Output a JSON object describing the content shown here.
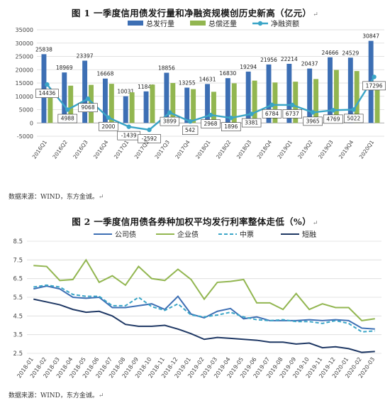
{
  "chart1": {
    "title": "图 1  一季度信用债发行量和净融资规模创历史新高（亿元）",
    "source": "数据来源：WIND，东方金诚。",
    "chart_data": {
      "type": "bar",
      "title": "图 1  一季度信用债发行量和净融资规模创历史新高（亿元）",
      "categories": [
        "2016Q1",
        "2016Q2",
        "2016Q3",
        "2016Q4",
        "2017Q1",
        "2017Q2",
        "2017Q3",
        "2017Q4",
        "2018Q1",
        "2018Q2",
        "2018Q3",
        "2018Q4",
        "2019Q1",
        "2019Q2",
        "2019Q3",
        "2019Q4",
        "2020Q1"
      ],
      "ylim": [
        -5000,
        35000
      ],
      "yticks": [
        -5000,
        0,
        5000,
        10000,
        15000,
        20000,
        25000,
        30000,
        35000
      ],
      "legend_position": "top",
      "series": [
        {
          "name": "总发行量",
          "type": "bar",
          "color": "#3d6fb4",
          "values": [
            25838,
            18969,
            23397,
            16668,
            10031,
            11849,
            18856,
            13255,
            14631,
            16830,
            19294,
            21956,
            22214,
            20437,
            24666,
            24529,
            30847
          ],
          "labels_shown": true
        },
        {
          "name": "总偿还量",
          "type": "bar",
          "color": "#92b650",
          "values": [
            11400,
            14000,
            14300,
            14700,
            11500,
            14400,
            15000,
            12700,
            11700,
            14900,
            15900,
            15200,
            15500,
            16500,
            19900,
            19500,
            13600
          ],
          "labels_shown": false
        },
        {
          "name": "净融资额",
          "type": "line",
          "color": "#3aa5c7",
          "values": [
            14436,
            4988,
            9068,
            2000,
            -1439,
            -2592,
            3899,
            542,
            2968,
            1896,
            3381,
            6784,
            6737,
            3965,
            4769,
            5022,
            17296
          ],
          "labels_shown": true
        }
      ]
    }
  },
  "chart2": {
    "title": "图 2  一季度信用债各券种加权平均发行利率整体走低（%）",
    "source": "数据来源：WIND，东方金诚。",
    "chart_data": {
      "type": "line",
      "title": "图 2  一季度信用债各券种加权平均发行利率整体走低（%）",
      "categories": [
        "2018-01",
        "2018-02",
        "2018-03",
        "2018-04",
        "2018-05",
        "2018-06",
        "2018-07",
        "2018-08",
        "2018-09",
        "2018-10",
        "2018-11",
        "2018-12",
        "2019-01",
        "2019-02",
        "2019-03",
        "2019-04",
        "2019-05",
        "2019-06",
        "2019-07",
        "2019-08",
        "2019-09",
        "2019-10",
        "2019-11",
        "2019-12",
        "2020-01",
        "2020-02",
        "2020-03"
      ],
      "ylim": [
        2.5,
        8.5
      ],
      "yticks": [
        2.5,
        3.5,
        4.5,
        5.5,
        6.5,
        7.5,
        8.5
      ],
      "legend_position": "top",
      "series": [
        {
          "name": "公司债",
          "color": "#3d6fb4",
          "dash": "solid",
          "values": [
            5.95,
            6.1,
            5.95,
            5.5,
            5.45,
            5.5,
            4.95,
            4.95,
            5.05,
            5.15,
            4.85,
            5.55,
            4.6,
            4.4,
            4.75,
            4.9,
            4.35,
            4.45,
            4.25,
            4.25,
            4.25,
            4.3,
            4.25,
            4.3,
            4.25,
            3.85,
            3.8
          ]
        },
        {
          "name": "企业债",
          "color": "#92b650",
          "dash": "solid",
          "values": [
            7.2,
            7.15,
            6.4,
            6.45,
            7.5,
            6.3,
            6.65,
            6.15,
            7.15,
            6.5,
            6.4,
            7.0,
            6.45,
            5.4,
            6.3,
            6.35,
            6.45,
            5.2,
            5.2,
            4.85,
            5.7,
            4.85,
            5.15,
            4.95,
            4.95,
            4.25,
            4.35
          ]
        },
        {
          "name": "中票",
          "color": "#3aa5c7",
          "dash": "dashed",
          "values": [
            6.05,
            6.15,
            6.05,
            5.65,
            5.55,
            5.55,
            5.05,
            5.05,
            5.5,
            5.0,
            4.8,
            5.15,
            4.55,
            4.45,
            4.55,
            4.7,
            4.45,
            4.3,
            4.25,
            4.3,
            4.2,
            4.2,
            4.1,
            4.25,
            4.1,
            3.65,
            3.7
          ]
        },
        {
          "name": "短融",
          "color": "#1f3864",
          "dash": "solid",
          "values": [
            5.4,
            5.25,
            5.1,
            4.85,
            4.7,
            4.75,
            4.5,
            4.05,
            3.95,
            3.95,
            4.0,
            3.8,
            3.55,
            3.25,
            3.35,
            3.3,
            3.25,
            3.2,
            3.1,
            3.1,
            3.0,
            3.05,
            2.8,
            2.85,
            2.75,
            2.55,
            2.6
          ]
        }
      ]
    }
  }
}
